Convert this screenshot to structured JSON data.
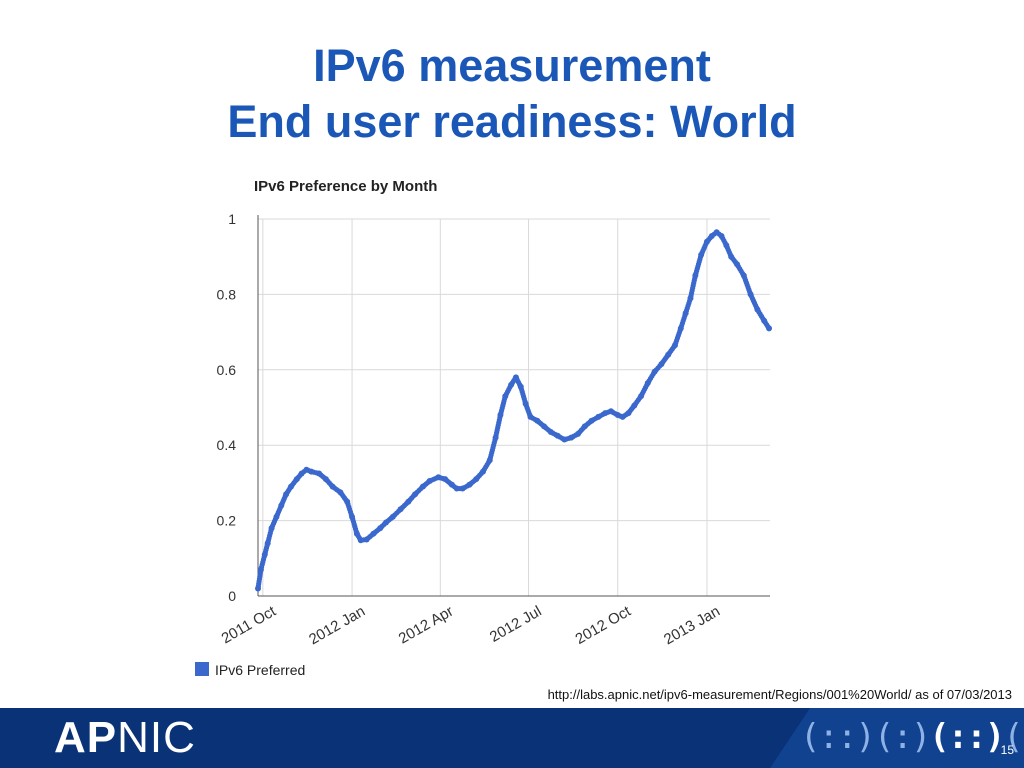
{
  "slide": {
    "title_line1": "IPv6 measurement",
    "title_line2": "End user readiness: World",
    "source": "http://labs.apnic.net/ipv6-measurement/Regions/001%20World/ as of 07/03/2013",
    "page_number": "15"
  },
  "footer": {
    "logo_bold": "AP",
    "logo_rest": "NIC",
    "pattern_left": "(::)(:)",
    "pattern_mid": "(::)",
    "pattern_right": "(::)(::)"
  },
  "colors": {
    "title": "#1a57b6",
    "series": "#3b68cc",
    "footer_bg": "#0a3276",
    "grid": "#d9d9d9"
  },
  "chart_data": {
    "type": "scatter",
    "title": "IPv6 Preference by Month",
    "xlabel": "",
    "ylabel": "",
    "ylim": [
      0,
      1
    ],
    "yticks": [
      "0",
      "0.2",
      "0.4",
      "0.6",
      "0.8",
      "1"
    ],
    "xticks": [
      "2011 Oct",
      "2012 Jan",
      "2012 Apr",
      "2012 Jul",
      "2012 Oct",
      "2013 Jan"
    ],
    "xlim": [
      "2011-09-26",
      "2013-03-07"
    ],
    "grid": true,
    "legend": "bottom-left",
    "series": [
      {
        "name": "IPv6 Preferred",
        "points": [
          [
            "2011-09-26",
            0.02
          ],
          [
            "2011-09-29",
            0.07
          ],
          [
            "2011-10-03",
            0.11
          ],
          [
            "2011-10-06",
            0.14
          ],
          [
            "2011-10-10",
            0.18
          ],
          [
            "2011-10-15",
            0.21
          ],
          [
            "2011-10-20",
            0.24
          ],
          [
            "2011-10-25",
            0.27
          ],
          [
            "2011-10-30",
            0.29
          ],
          [
            "2011-11-05",
            0.31
          ],
          [
            "2011-11-10",
            0.325
          ],
          [
            "2011-11-15",
            0.335
          ],
          [
            "2011-11-20",
            0.33
          ],
          [
            "2011-11-28",
            0.325
          ],
          [
            "2011-12-05",
            0.31
          ],
          [
            "2011-12-12",
            0.29
          ],
          [
            "2011-12-20",
            0.275
          ],
          [
            "2011-12-27",
            0.25
          ],
          [
            "2012-01-01",
            0.21
          ],
          [
            "2012-01-06",
            0.165
          ],
          [
            "2012-01-10",
            0.148
          ],
          [
            "2012-01-16",
            0.15
          ],
          [
            "2012-01-23",
            0.165
          ],
          [
            "2012-01-30",
            0.18
          ],
          [
            "2012-02-05",
            0.195
          ],
          [
            "2012-02-12",
            0.21
          ],
          [
            "2012-02-20",
            0.23
          ],
          [
            "2012-02-28",
            0.25
          ],
          [
            "2012-03-06",
            0.27
          ],
          [
            "2012-03-14",
            0.29
          ],
          [
            "2012-03-21",
            0.305
          ],
          [
            "2012-03-30",
            0.315
          ],
          [
            "2012-04-06",
            0.31
          ],
          [
            "2012-04-13",
            0.295
          ],
          [
            "2012-04-18",
            0.285
          ],
          [
            "2012-04-24",
            0.285
          ],
          [
            "2012-05-01",
            0.295
          ],
          [
            "2012-05-08",
            0.31
          ],
          [
            "2012-05-15",
            0.33
          ],
          [
            "2012-05-22",
            0.36
          ],
          [
            "2012-05-28",
            0.42
          ],
          [
            "2012-06-02",
            0.48
          ],
          [
            "2012-06-07",
            0.53
          ],
          [
            "2012-06-13",
            0.56
          ],
          [
            "2012-06-18",
            0.58
          ],
          [
            "2012-06-23",
            0.555
          ],
          [
            "2012-06-28",
            0.51
          ],
          [
            "2012-07-03",
            0.475
          ],
          [
            "2012-07-10",
            0.465
          ],
          [
            "2012-07-17",
            0.45
          ],
          [
            "2012-07-24",
            0.435
          ],
          [
            "2012-07-31",
            0.425
          ],
          [
            "2012-08-07",
            0.415
          ],
          [
            "2012-08-14",
            0.42
          ],
          [
            "2012-08-21",
            0.43
          ],
          [
            "2012-08-28",
            0.45
          ],
          [
            "2012-09-04",
            0.465
          ],
          [
            "2012-09-11",
            0.475
          ],
          [
            "2012-09-18",
            0.485
          ],
          [
            "2012-09-24",
            0.49
          ],
          [
            "2012-10-01",
            0.48
          ],
          [
            "2012-10-06",
            0.475
          ],
          [
            "2012-10-12",
            0.485
          ],
          [
            "2012-10-18",
            0.505
          ],
          [
            "2012-10-25",
            0.53
          ],
          [
            "2012-11-01",
            0.565
          ],
          [
            "2012-11-08",
            0.595
          ],
          [
            "2012-11-15",
            0.615
          ],
          [
            "2012-11-22",
            0.64
          ],
          [
            "2012-11-29",
            0.665
          ],
          [
            "2012-12-05",
            0.71
          ],
          [
            "2012-12-10",
            0.75
          ],
          [
            "2012-12-15",
            0.79
          ],
          [
            "2012-12-20",
            0.85
          ],
          [
            "2012-12-26",
            0.905
          ],
          [
            "2013-01-01",
            0.94
          ],
          [
            "2013-01-06",
            0.955
          ],
          [
            "2013-01-11",
            0.965
          ],
          [
            "2013-01-16",
            0.955
          ],
          [
            "2013-01-21",
            0.93
          ],
          [
            "2013-01-26",
            0.9
          ],
          [
            "2013-02-01",
            0.88
          ],
          [
            "2013-02-08",
            0.85
          ],
          [
            "2013-02-15",
            0.8
          ],
          [
            "2013-02-22",
            0.76
          ],
          [
            "2013-03-01",
            0.73
          ],
          [
            "2013-03-06",
            0.71
          ]
        ]
      }
    ]
  }
}
